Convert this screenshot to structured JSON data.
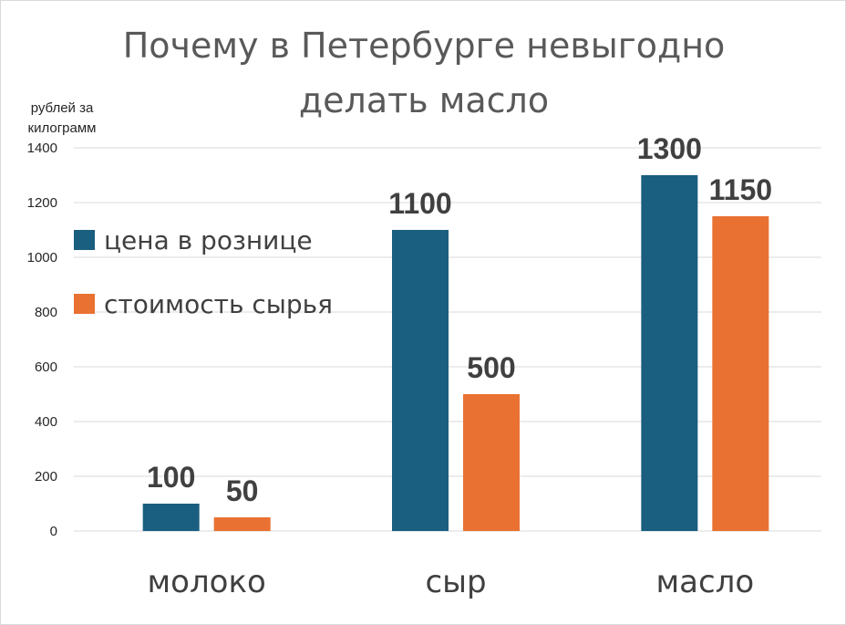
{
  "chart_data": {
    "type": "bar",
    "title": "Почему в Петербурге невыгодно делать масло",
    "title_lines": [
      "Почему в Петербурге невыгодно",
      "делать масло"
    ],
    "ylabel": "рублей за килограмм",
    "ylabel_lines": [
      "рублей за",
      "килограмм"
    ],
    "xlabel": "",
    "categories": [
      "молоко",
      "сыр",
      "масло"
    ],
    "series": [
      {
        "name": "цена в рознице",
        "color": "#1a5e80",
        "values": [
          100,
          1100,
          1300
        ]
      },
      {
        "name": "стоимость сырья",
        "color": "#e97132",
        "values": [
          50,
          500,
          1150
        ]
      }
    ],
    "ylim": [
      0,
      1400
    ],
    "yticks": [
      0,
      200,
      400,
      600,
      800,
      1000,
      1200,
      1400
    ],
    "grid": true,
    "legend_position": "left",
    "data_labels": true
  }
}
